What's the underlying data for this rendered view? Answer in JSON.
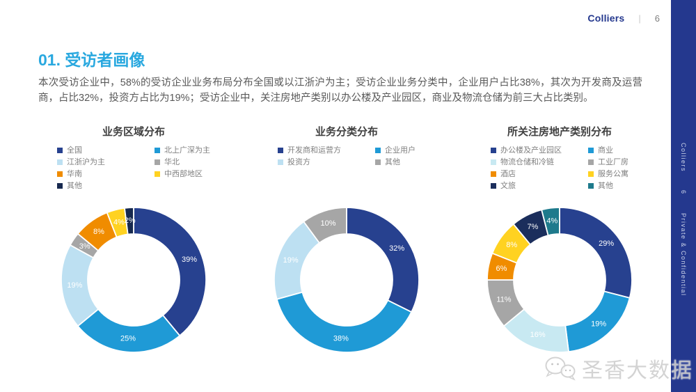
{
  "header": {
    "brand": "Colliers",
    "separator": "|",
    "page_number": "6"
  },
  "sidebar": {
    "background_color": "#24388E",
    "brand": "Colliers",
    "page_number": "6",
    "confidential": "Private & Confidential"
  },
  "section": {
    "title": "01. 受访者画像",
    "title_color": "#29A8DF"
  },
  "intro": {
    "text": "本次受访企业中，58%的受访企业业务布局分布全国或以江浙沪为主；受访企业业务分类中，企业用户占比38%，其次为开发商及运营商，占比32%，投资方占比为19%；受访企业中，关注房地产类别以办公楼及产业园区，商业及物流仓储为前三大占比类别。"
  },
  "chart_data": [
    {
      "type": "pie",
      "subtype": "donut",
      "title": "业务区域分布",
      "label_format": "percent",
      "legend_position": "top",
      "items": [
        {
          "label": "全国",
          "value": 39,
          "color": "#27418F"
        },
        {
          "label": "北上广深为主",
          "value": 25,
          "color": "#1F9AD6"
        },
        {
          "label": "江浙沪为主",
          "value": 19,
          "color": "#BDE0F2"
        },
        {
          "label": "华北",
          "value": 3,
          "color": "#A6A6A6"
        },
        {
          "label": "华南",
          "value": 8,
          "color": "#F08C00"
        },
        {
          "label": "中西部地区",
          "value": 4,
          "color": "#FFD221"
        },
        {
          "label": "其他",
          "value": 2,
          "color": "#17294F"
        }
      ]
    },
    {
      "type": "pie",
      "subtype": "donut",
      "title": "业务分类分布",
      "label_format": "percent",
      "legend_position": "top",
      "items": [
        {
          "label": "开发商和运营方",
          "value": 32,
          "color": "#27418F"
        },
        {
          "label": "企业用户",
          "value": 38,
          "color": "#1F9AD6"
        },
        {
          "label": "投资方",
          "value": 19,
          "color": "#BDE0F2"
        },
        {
          "label": "其他",
          "value": 10,
          "color": "#A6A6A6"
        }
      ]
    },
    {
      "type": "pie",
      "subtype": "donut",
      "title": "所关注房地产类别分布",
      "label_format": "percent",
      "legend_position": "top",
      "items": [
        {
          "label": "办公楼及产业园区",
          "value": 29,
          "color": "#27418F"
        },
        {
          "label": "商业",
          "value": 19,
          "color": "#1F9AD6"
        },
        {
          "label": "物流仓储和冷链",
          "value": 16,
          "color": "#C8E9F2"
        },
        {
          "label": "工业厂房",
          "value": 11,
          "color": "#A6A6A6"
        },
        {
          "label": "酒店",
          "value": 6,
          "color": "#F08C00"
        },
        {
          "label": "服务公寓",
          "value": 8,
          "color": "#FFD221"
        },
        {
          "label": "文旅",
          "value": 7,
          "color": "#1B2E5C"
        },
        {
          "label": "其他",
          "value": 4,
          "color": "#1E7A8C"
        }
      ]
    }
  ],
  "watermark": {
    "text": "圣香大数据",
    "icon": "wechat-bubbles-icon"
  }
}
